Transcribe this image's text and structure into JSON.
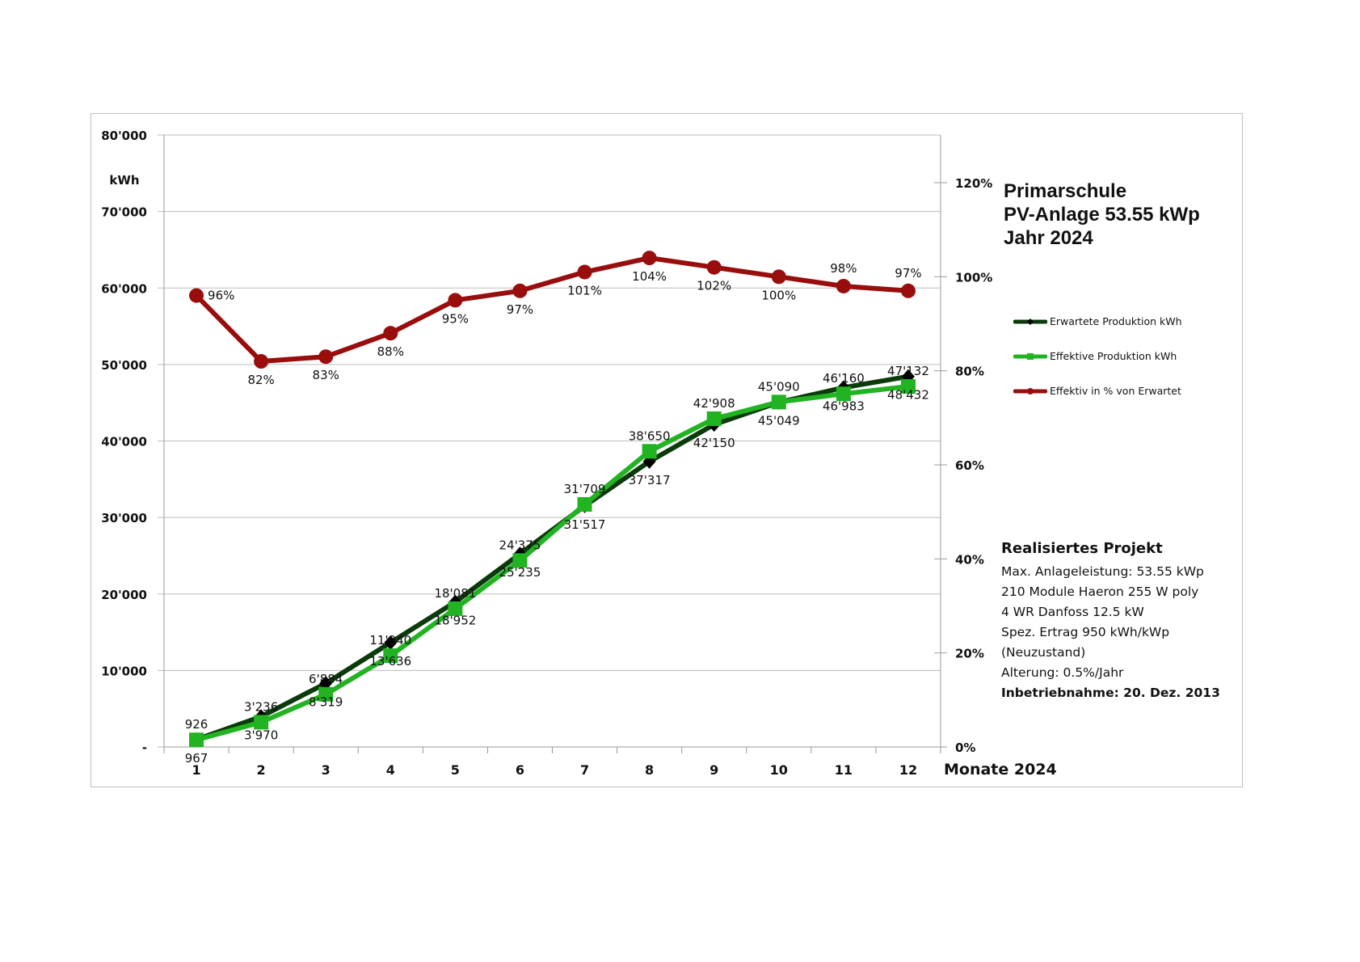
{
  "chart_data": {
    "type": "line",
    "title": [
      "Primarschule",
      "PV-Anlage 53.55 kWp",
      "Jahr 2024"
    ],
    "xlabel": "Monate 2024",
    "ylabel": "kWh",
    "categories": [
      "1",
      "2",
      "3",
      "4",
      "5",
      "6",
      "7",
      "8",
      "9",
      "10",
      "11",
      "12"
    ],
    "ylim": [
      0,
      80000
    ],
    "y_ticks": [
      "-",
      "10'000",
      "20'000",
      "30'000",
      "40'000",
      "50'000",
      "60'000",
      "70'000",
      "80'000"
    ],
    "y2lim": [
      0,
      120
    ],
    "y2_ticks": [
      "0%",
      "20%",
      "40%",
      "60%",
      "80%",
      "100%",
      "120%"
    ],
    "grid": true,
    "legend_placement": "right",
    "series": [
      {
        "name": "Erwartete Produktion kWh",
        "axis": "left",
        "color": "#0b3a0b",
        "marker": "diamond",
        "values": [
          967,
          3970,
          8319,
          13636,
          18952,
          25235,
          31517,
          37317,
          42150,
          45049,
          46983,
          48432
        ],
        "labels": [
          "967",
          "3'970",
          "8'319",
          "13'636",
          "18'952",
          "25'235",
          "31'517",
          "37'317",
          "42'150",
          "45'049",
          "46'983",
          "48'432"
        ]
      },
      {
        "name": "Effektive Produktion kWh",
        "axis": "left",
        "color": "#22b322",
        "marker": "square",
        "values": [
          926,
          3236,
          6884,
          11940,
          18081,
          24375,
          31709,
          38650,
          42908,
          45090,
          46160,
          47132
        ],
        "labels": [
          "926",
          "3'236",
          "6'884",
          "11'940",
          "18'081",
          "24'375",
          "31'709",
          "38'650",
          "42'908",
          "45'090",
          "46'160",
          "47'132"
        ]
      },
      {
        "name": "Effektiv in % von Erwartet",
        "axis": "right",
        "color": "#990d0d",
        "marker": "circle",
        "values": [
          96,
          82,
          83,
          88,
          95,
          97,
          101,
          104,
          102,
          100,
          98,
          97
        ],
        "labels": [
          "96%",
          "82%",
          "83%",
          "88%",
          "95%",
          "97%",
          "101%",
          "104%",
          "102%",
          "100%",
          "98%",
          "97%"
        ]
      }
    ]
  },
  "info": {
    "heading": "Realisiertes Projekt",
    "lines": [
      "Max. Anlageleistung: 53.55 kWp",
      "210 Module Haeron 255 W poly",
      "4 WR Danfoss 12.5 kW",
      "Spez. Ertrag 950 kWh/kWp",
      "(Neuzustand)",
      "Alterung: 0.5%/Jahr"
    ],
    "commissioning": "Inbetriebnahme: 20. Dez. 2013"
  }
}
